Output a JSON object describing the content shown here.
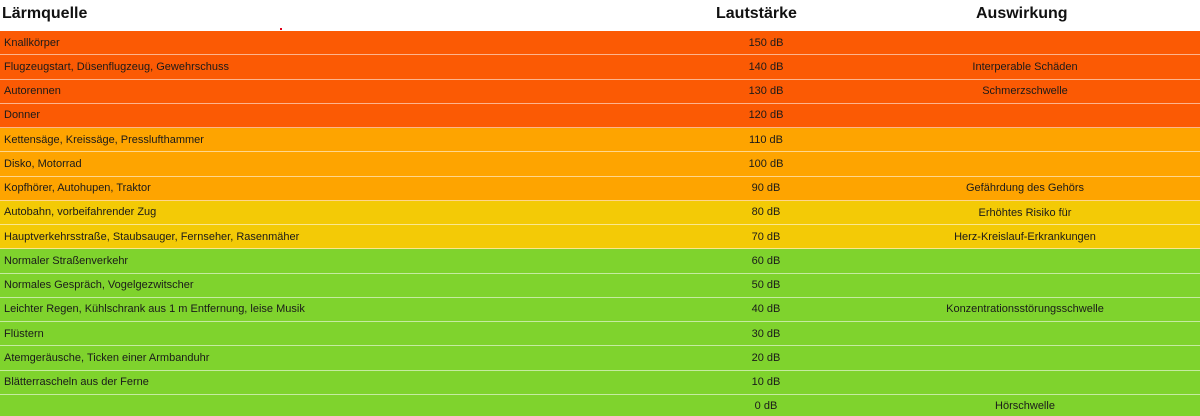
{
  "header": {
    "source": "Lärmquelle",
    "volume": "Lautstärke",
    "impact": "Auswirkung"
  },
  "colors": {
    "red": "#fb5a04",
    "orange": "#fea400",
    "yellow": "#f3ca06",
    "green": "#7fd32d",
    "accent": "#e0001b"
  },
  "rows": [
    {
      "source": "Knallkörper",
      "volume": "150 dB",
      "impact": "",
      "level": "red"
    },
    {
      "source": "Flugzeugstart, Düsenflugzeug, Gewehrschuss",
      "volume": "140 dB",
      "impact": "Interperable Schäden",
      "level": "red"
    },
    {
      "source": "Autorennen",
      "volume": "130 dB",
      "impact": "Schmerzschwelle",
      "level": "red"
    },
    {
      "source": "Donner",
      "volume": "120 dB",
      "impact": "",
      "level": "red"
    },
    {
      "source": "Kettensäge, Kreissäge, Presslufthammer",
      "volume": "110 dB",
      "impact": "",
      "level": "orange"
    },
    {
      "source": "Disko, Motorrad",
      "volume": "100 dB",
      "impact": "",
      "level": "orange"
    },
    {
      "source": "Kopfhörer, Autohupen, Traktor",
      "volume": "90 dB",
      "impact": "Gefährdung des Gehörs",
      "level": "orange"
    },
    {
      "source": "Autobahn, vorbeifahrender Zug",
      "volume": "80 dB",
      "impact": "",
      "level": "yellow"
    },
    {
      "source": "Hauptverkehrsstraße, Staubsauger, Fernseher, Rasenmäher",
      "volume": "70 dB",
      "impact": "",
      "level": "yellow"
    },
    {
      "source": "Normaler Straßenverkehr",
      "volume": "60 dB",
      "impact": "",
      "level": "green"
    },
    {
      "source": "Normales Gespräch, Vogelgezwitscher",
      "volume": "50 dB",
      "impact": "",
      "level": "green"
    },
    {
      "source": "Leichter Regen, Kühlschrank aus 1 m Entfernung, leise Musik",
      "volume": "40 dB",
      "impact": "Konzentrationsstörungsschwelle",
      "level": "green"
    },
    {
      "source": "Flüstern",
      "volume": "30 dB",
      "impact": "",
      "level": "green"
    },
    {
      "source": "Atemgeräusche, Ticken einer Armbanduhr",
      "volume": "20 dB",
      "impact": "",
      "level": "green"
    },
    {
      "source": "Blätterrascheln aus der Ferne",
      "volume": "10 dB",
      "impact": "",
      "level": "green"
    },
    {
      "source": "",
      "volume": "0 dB",
      "impact": "Hörschwelle",
      "level": "green"
    }
  ],
  "merged_impact": {
    "line1": "Erhöhtes Risiko für",
    "line2": "Herz-Kreislauf-Erkrankungen"
  }
}
